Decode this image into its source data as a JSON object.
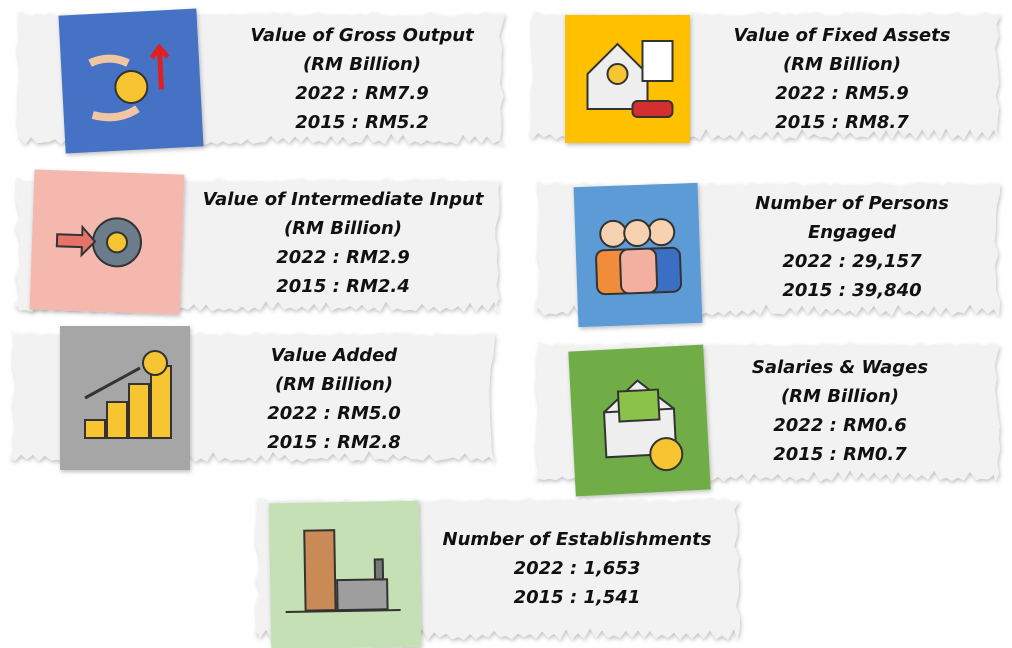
{
  "cards": [
    {
      "lines": [
        "Value of Gross Output",
        "(RM Billion)",
        "2022 : RM7.9",
        "2015 : RM5.2"
      ]
    },
    {
      "lines": [
        "Value of Fixed Assets",
        "(RM Billion)",
        "2022 : RM5.9",
        "2015 : RM8.7"
      ]
    },
    {
      "lines": [
        "Value of Intermediate Input",
        "(RM Billion)",
        "2022 : RM2.9",
        "2015 : RM2.4"
      ]
    },
    {
      "lines": [
        "Number of Persons",
        "Engaged",
        "2022 : 29,157",
        "2015 : 39,840"
      ]
    },
    {
      "lines": [
        "Value Added",
        "(RM Billion)",
        "2022 : RM5.0",
        "2015 : RM2.8"
      ]
    },
    {
      "lines": [
        "Salaries & Wages",
        "(RM Billion)",
        "2022 : RM0.6",
        "2015 : RM0.7"
      ]
    },
    {
      "lines": [
        "Number of Establishments",
        "2022 : 1,653",
        "2015 : 1,541"
      ]
    }
  ]
}
